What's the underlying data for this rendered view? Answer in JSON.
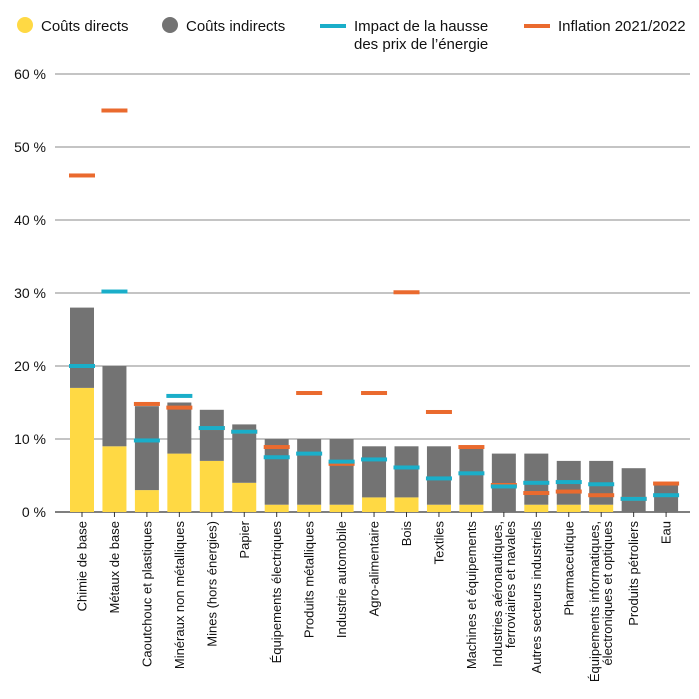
{
  "chart_data": {
    "type": "bar",
    "stacked": true,
    "legend_position": "top",
    "grid": true,
    "ylim": [
      0,
      60
    ],
    "yticks": [
      "0 %",
      "10 %",
      "20 %",
      "30 %",
      "40 %",
      "50 %",
      "60 %"
    ],
    "ytick_values": [
      0,
      10,
      20,
      30,
      40,
      50,
      60
    ],
    "legend": [
      {
        "label": "Coûts directs",
        "marker": "circle",
        "color": "#FFD944"
      },
      {
        "label": "Coûts indirects",
        "marker": "circle",
        "color": "#737373"
      },
      {
        "label": "Impact de la hausse",
        "label2": "des prix de l’énergie",
        "marker": "dash",
        "color": "#1AAEC9"
      },
      {
        "label": "Inflation 2021/2022",
        "marker": "dash",
        "color": "#EA6A2E"
      }
    ],
    "categories": [
      [
        "Chimie de base"
      ],
      [
        "Métaux de base"
      ],
      [
        "Caoutchouc et plastiques"
      ],
      [
        "Minéraux non métalliques"
      ],
      [
        "Mines (hors énergies)"
      ],
      [
        "Papier"
      ],
      [
        "Équipements électriques"
      ],
      [
        "Produits métalliques"
      ],
      [
        "Industrie automobile"
      ],
      [
        "Agro-alimentaire"
      ],
      [
        "Bois"
      ],
      [
        "Textiles"
      ],
      [
        "Machines et équipements"
      ],
      [
        "Industries aéronautiques,",
        "ferroviaires et navales"
      ],
      [
        "Autres secteurs industriels"
      ],
      [
        "Pharmaceutique"
      ],
      [
        "Équipements informatiques,",
        "électroniques et optiques"
      ],
      [
        "Produits pétroliers"
      ],
      [
        "Eau"
      ]
    ],
    "series": [
      {
        "name": "Coûts directs",
        "kind": "bar",
        "color": "#FFD944",
        "values": [
          17,
          9,
          3,
          8,
          7,
          4,
          1,
          1,
          1,
          2,
          2,
          1,
          1,
          0,
          1,
          1,
          1,
          0,
          0
        ]
      },
      {
        "name": "Coûts indirects",
        "kind": "bar",
        "color": "#737373",
        "values": [
          11,
          11,
          11.5,
          7,
          7,
          8,
          9,
          9,
          9,
          7,
          7,
          8,
          8,
          8,
          7,
          6,
          6,
          6,
          4
        ]
      },
      {
        "name": "Impact de la hausse des prix de l’énergie",
        "kind": "marker",
        "color": "#1AAEC9",
        "values": [
          20,
          30.2,
          9.8,
          15.9,
          11.5,
          11,
          7.5,
          8,
          6.9,
          7.2,
          6.1,
          4.6,
          5.3,
          3.5,
          4,
          4.1,
          3.8,
          1.8,
          2.3
        ]
      },
      {
        "name": "Inflation 2021/2022",
        "kind": "marker",
        "color": "#EA6A2E",
        "values": [
          46.1,
          55,
          14.8,
          14.3,
          11.5,
          11,
          8.9,
          16.3,
          6.6,
          16.3,
          30.1,
          13.7,
          8.9,
          3.7,
          2.6,
          2.8,
          2.3,
          1.8,
          3.9
        ]
      }
    ]
  }
}
